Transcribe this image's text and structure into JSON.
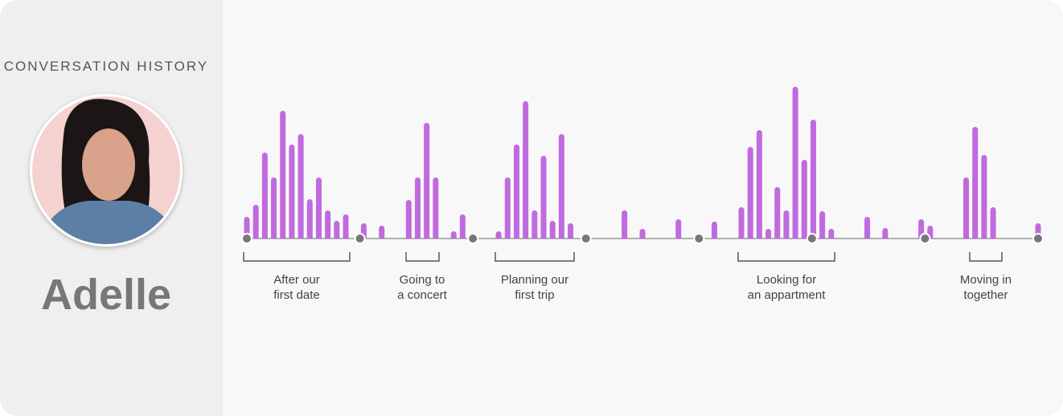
{
  "sidebar": {
    "title": "CONVERSATION HISTORY",
    "name": "Adelle"
  },
  "timeline": {
    "color": "#c06adf",
    "bars": [
      27,
      42,
      107,
      76,
      159,
      117,
      130,
      49,
      76,
      35,
      22,
      30,
      null,
      19,
      null,
      16,
      null,
      null,
      48,
      76,
      144,
      76,
      null,
      9,
      30,
      null,
      null,
      null,
      9,
      76,
      117,
      171,
      35,
      103,
      22,
      130,
      19,
      null,
      null,
      null,
      null,
      null,
      35,
      null,
      12,
      null,
      null,
      null,
      24,
      null,
      null,
      null,
      21,
      null,
      null,
      39,
      114,
      135,
      12,
      64,
      35,
      189,
      98,
      148,
      34,
      12,
      null,
      null,
      null,
      27,
      null,
      13,
      null,
      null,
      null,
      24,
      16,
      null,
      null,
      null,
      76,
      139,
      104,
      39,
      null,
      null,
      null,
      null,
      19
    ],
    "periods": [
      {
        "lines": [
          "After our",
          "first date"
        ]
      },
      {
        "lines": [
          "Going to",
          "a concert"
        ]
      },
      {
        "lines": [
          "Planning our",
          "first trip"
        ]
      },
      {
        "lines": [
          "Looking for",
          "an appartment"
        ]
      },
      {
        "lines": [
          "Moving in",
          "together"
        ]
      }
    ]
  }
}
